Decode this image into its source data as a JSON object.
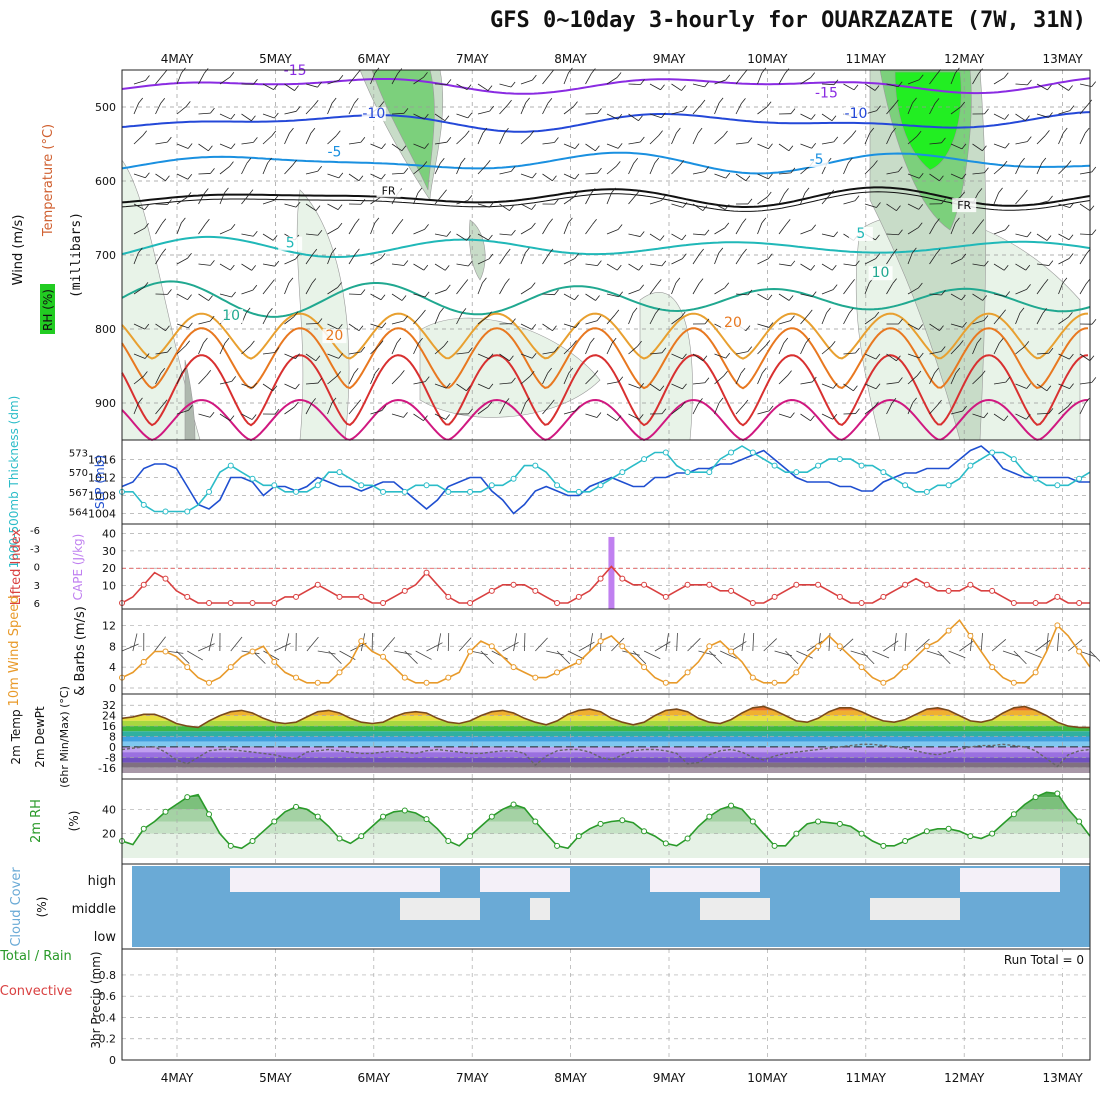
{
  "title": "GFS 0~10day 3-hourly for OUARZAZATE (7W, 31N)",
  "days": [
    "4MAY",
    "5MAY",
    "6MAY",
    "7MAY",
    "8MAY",
    "9MAY",
    "10MAY",
    "11MAY",
    "12MAY",
    "13MAY"
  ],
  "colors": {
    "blue": "#1f4fd0",
    "cyan": "#2bbcc8",
    "red": "#d94040",
    "orange": "#e89a2a",
    "purple": "#c080f0",
    "green": "#2a9a2a",
    "cloud": "#6aaad6"
  },
  "panels": {
    "upper_air": {
      "ylabels": [
        "Wind (m/s)",
        "Temperature (°C)",
        "RH (%)"
      ],
      "axis_unit": "(millibars)",
      "yticks": [
        500,
        600,
        700,
        800,
        900
      ],
      "contour_labels": [
        {
          "text": "-15",
          "day": 1.2,
          "p": 457
        },
        {
          "text": "-15",
          "day": 6.6,
          "p": 487
        },
        {
          "text": "-10",
          "day": 2.0,
          "p": 515
        },
        {
          "text": "-10",
          "day": 6.9,
          "p": 515
        },
        {
          "text": "-5",
          "day": 1.6,
          "p": 567
        },
        {
          "text": "-5",
          "day": 6.5,
          "p": 577
        },
        {
          "text": "FR",
          "day": 2.15,
          "p": 618
        },
        {
          "text": "FR",
          "day": 8.0,
          "p": 638
        },
        {
          "text": "5",
          "day": 1.15,
          "p": 690
        },
        {
          "text": "5",
          "day": 6.95,
          "p": 677
        },
        {
          "text": "10",
          "day": 0.55,
          "p": 788
        },
        {
          "text": "10",
          "day": 7.15,
          "p": 730
        },
        {
          "text": "20",
          "day": 1.6,
          "p": 815
        },
        {
          "text": "20",
          "day": 5.65,
          "p": 797
        }
      ]
    },
    "slp": {
      "ylabel_left": "1000-500mb Thickness (dm)",
      "ylabel_right": "SLP (mb)",
      "thickness_ticks": [
        564,
        567,
        570,
        573
      ],
      "slp_ticks": [
        1004,
        1008,
        1012,
        1016
      ]
    },
    "cape": {
      "ylabel_left": "Lifted Index",
      "ylabel_right": "CAPE (J/kg)",
      "li_ticks": [
        "6",
        "3",
        "0",
        "-3",
        "-6"
      ],
      "cape_ticks": [
        10,
        20,
        30,
        40
      ]
    },
    "wind": {
      "ylabel_left": "10m Wind Speed",
      "ylabel_right": "& Barbs (m/s)",
      "yticks": [
        0,
        4,
        8,
        12
      ]
    },
    "temp": {
      "ylabel_left": "2m Temp",
      "ylabel_mid": "2m DewPt",
      "ylabel_right": "(6hr Min/Max) (°C)",
      "yticks": [
        "32",
        "24",
        "16",
        "8",
        "0",
        "-8",
        "-16"
      ]
    },
    "rh": {
      "ylabel_left": "2m RH",
      "ylabel_right": "(%)",
      "yticks": [
        20,
        40
      ]
    },
    "cloud": {
      "ylabel_left": "Cloud Cover",
      "ylabel_right": "(%)",
      "levels": [
        "high",
        "middle",
        "low"
      ]
    },
    "precip": {
      "ylabel_left": "Total / Rain",
      "ylabel_left2": "Convective",
      "ylabel_right": "3hr Precip (mm)",
      "yticks": [
        "0",
        "0.2",
        "0.4",
        "0.6",
        "0.8"
      ],
      "run_total": "Run Total = 0"
    }
  },
  "chart_data": [
    {
      "type": "line",
      "name_hint": "SLP and 1000-500mb thickness",
      "x_unit": "day",
      "series": [
        {
          "name": "SLP (mb)",
          "color": "#1f4fd0",
          "values": [
            1010,
            1011,
            1014,
            1015,
            1015,
            1014,
            1010,
            1006,
            1005,
            1007,
            1012,
            1012,
            1011,
            1008,
            1010,
            1010,
            1009,
            1010,
            1012,
            1011,
            1010,
            1010,
            1009,
            1010,
            1011,
            1011,
            1009,
            1007,
            1005,
            1007,
            1010,
            1011,
            1012,
            1012,
            1009,
            1007,
            1004,
            1006,
            1009,
            1010,
            1009,
            1008,
            1008,
            1010,
            1011,
            1012,
            1011,
            1010,
            1010,
            1012,
            1012,
            1013,
            1013,
            1014,
            1014,
            1015,
            1015,
            1016,
            1017,
            1018,
            1016,
            1014,
            1012,
            1011,
            1011,
            1011,
            1010,
            1010,
            1009,
            1009,
            1011,
            1012,
            1013,
            1013,
            1014,
            1014,
            1014,
            1016,
            1018,
            1019,
            1017,
            1014,
            1013,
            1012,
            1012,
            1012,
            1012,
            1012,
            1011,
            1011
          ]
        },
        {
          "name": "Thickness (dm)",
          "color": "#2bbcc8",
          "values": [
            567,
            567,
            565,
            564,
            564,
            564,
            564,
            565,
            567,
            570,
            571,
            570,
            569,
            568,
            568,
            567,
            567,
            567,
            568,
            570,
            570,
            569,
            568,
            568,
            567,
            567,
            567,
            568,
            568,
            568,
            567,
            567,
            567,
            567,
            568,
            568,
            569,
            571,
            571,
            570,
            568,
            567,
            567,
            567,
            568,
            569,
            570,
            571,
            572,
            573,
            573,
            571,
            570,
            570,
            570,
            572,
            573,
            574,
            573,
            572,
            571,
            570,
            570,
            570,
            571,
            572,
            572,
            572,
            571,
            571,
            570,
            569,
            568,
            567,
            567,
            568,
            568,
            569,
            571,
            572,
            573,
            573,
            572,
            570,
            569,
            568,
            568,
            568,
            569,
            570
          ]
        }
      ]
    },
    {
      "type": "line",
      "name_hint": "Lifted index and CAPE",
      "series": [
        {
          "name": "Lifted Index",
          "color": "#d94040",
          "values": [
            6,
            5,
            3,
            1,
            2,
            4,
            5,
            6,
            6,
            6,
            6,
            6,
            6,
            6,
            6,
            5,
            5,
            4,
            3,
            4,
            5,
            5,
            5,
            6,
            6,
            5,
            4,
            3,
            1,
            3,
            5,
            6,
            6,
            5,
            4,
            3,
            3,
            3,
            4,
            5,
            6,
            6,
            5,
            4,
            2,
            0,
            2,
            3,
            3,
            4,
            5,
            4,
            3,
            3,
            3,
            4,
            4,
            5,
            6,
            6,
            5,
            4,
            3,
            3,
            3,
            4,
            5,
            6,
            6,
            6,
            5,
            4,
            3,
            2,
            3,
            4,
            4,
            4,
            3,
            4,
            4,
            5,
            6,
            6,
            6,
            6,
            5,
            6,
            6,
            6
          ]
        },
        {
          "name": "CAPE",
          "color": "#c080f0",
          "values": [
            0,
            0,
            0,
            0,
            0,
            0,
            0,
            0,
            0,
            0,
            0,
            0,
            0,
            0,
            0,
            0,
            0,
            0,
            0,
            0,
            0,
            0,
            0,
            0,
            0,
            0,
            0,
            0,
            0,
            0,
            0,
            0,
            0,
            0,
            0,
            0,
            0,
            0,
            0,
            0,
            0,
            0,
            0,
            0,
            0,
            38,
            0,
            0,
            0,
            0,
            0,
            0,
            0,
            0,
            0,
            0,
            0,
            0,
            0,
            0,
            0,
            0,
            0,
            0,
            0,
            0,
            0,
            0,
            0,
            0,
            0,
            0,
            0,
            0,
            0,
            0,
            0,
            0,
            0,
            0,
            0,
            0,
            0,
            0,
            0,
            0,
            0,
            0,
            0,
            0
          ]
        }
      ]
    },
    {
      "type": "line",
      "name_hint": "10m wind speed",
      "series": [
        {
          "name": "Wind Speed (m/s)",
          "color": "#e89a2a",
          "values": [
            2,
            3,
            5,
            7,
            7,
            6,
            4,
            2,
            1,
            2,
            4,
            6,
            7,
            8,
            5,
            3,
            2,
            1,
            1,
            1,
            3,
            5,
            9,
            7,
            6,
            4,
            2,
            1,
            1,
            1,
            2,
            3,
            7,
            9,
            8,
            6,
            4,
            3,
            2,
            2,
            3,
            4,
            5,
            7,
            9,
            10,
            8,
            6,
            4,
            2,
            1,
            1,
            3,
            5,
            8,
            9,
            7,
            5,
            2,
            1,
            1,
            1,
            3,
            6,
            8,
            10,
            8,
            6,
            4,
            2,
            1,
            2,
            4,
            6,
            8,
            9,
            11,
            13,
            10,
            7,
            4,
            2,
            1,
            1,
            3,
            7,
            12,
            10,
            7,
            4
          ]
        }
      ]
    },
    {
      "type": "area",
      "name_hint": "2m temperature and dewpoint",
      "series": [
        {
          "name": "2m Temp (°C)",
          "color": "#7a4a1a",
          "values": [
            22,
            23,
            25,
            25,
            22,
            18,
            16,
            15,
            20,
            24,
            27,
            28,
            26,
            22,
            19,
            18,
            19,
            23,
            27,
            28,
            26,
            22,
            19,
            18,
            19,
            23,
            26,
            27,
            26,
            22,
            19,
            18,
            20,
            24,
            27,
            28,
            26,
            22,
            19,
            17,
            20,
            25,
            28,
            29,
            27,
            22,
            19,
            17,
            19,
            24,
            28,
            29,
            27,
            22,
            19,
            18,
            21,
            26,
            30,
            31,
            28,
            24,
            20,
            19,
            22,
            27,
            30,
            30,
            27,
            23,
            20,
            19,
            21,
            25,
            29,
            30,
            28,
            24,
            20,
            19,
            21,
            26,
            30,
            31,
            28,
            24,
            19,
            16,
            15,
            15
          ]
        },
        {
          "name": "2m DewPt (°C)",
          "color": "#777777",
          "values": [
            -2,
            -1,
            0,
            0,
            -4,
            -10,
            -13,
            -8,
            -3,
            -2,
            -2,
            -3,
            -4,
            -5,
            -6,
            -8,
            -9,
            -4,
            -3,
            -2,
            -3,
            -4,
            -5,
            -5,
            -4,
            -3,
            -4,
            -5,
            -3,
            -2,
            -3,
            -4,
            -5,
            -5,
            -4,
            -3,
            -3,
            -5,
            -14,
            -7,
            -3,
            -2,
            -2,
            -4,
            -8,
            -10,
            -6,
            -3,
            -2,
            -2,
            -3,
            -5,
            -13,
            -12,
            -6,
            -3,
            -2,
            -4,
            -8,
            -10,
            -7,
            -5,
            -4,
            -3,
            -2,
            -1,
            0,
            1,
            2,
            2,
            1,
            0,
            -1,
            -3,
            -5,
            -6,
            -4,
            -2,
            0,
            1,
            1,
            2,
            1,
            0,
            -3,
            -9,
            -15,
            -6,
            -3,
            -2
          ]
        }
      ]
    },
    {
      "type": "area",
      "name_hint": "2m relative humidity",
      "series": [
        {
          "name": "2m RH (%)",
          "color": "#2a9a2a",
          "values": [
            14,
            11,
            24,
            30,
            38,
            44,
            50,
            52,
            36,
            20,
            10,
            8,
            14,
            22,
            30,
            38,
            42,
            40,
            34,
            26,
            16,
            12,
            18,
            26,
            34,
            38,
            39,
            37,
            32,
            24,
            14,
            10,
            18,
            26,
            34,
            40,
            44,
            41,
            30,
            20,
            10,
            8,
            18,
            24,
            28,
            30,
            31,
            29,
            22,
            18,
            12,
            10,
            16,
            26,
            34,
            40,
            43,
            40,
            30,
            20,
            10,
            10,
            20,
            28,
            30,
            29,
            28,
            26,
            20,
            14,
            10,
            10,
            14,
            18,
            22,
            24,
            24,
            22,
            18,
            16,
            20,
            28,
            36,
            44,
            50,
            54,
            53,
            40,
            30,
            18
          ]
        }
      ]
    }
  ]
}
